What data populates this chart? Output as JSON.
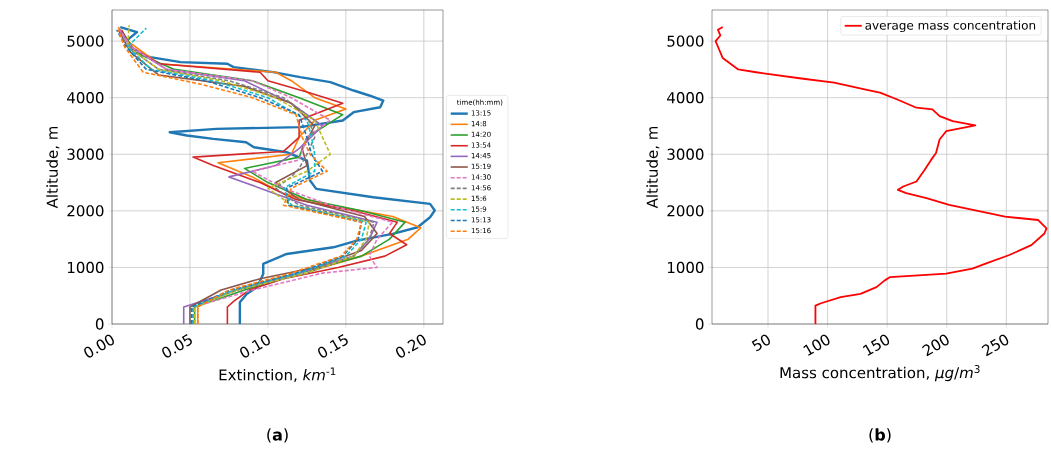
{
  "chart_data": [
    {
      "type": "line",
      "xlabel": "Extinction, *km*$^{-1}$",
      "ylabel": "Altitude, m",
      "legend_title": "time(hh:mm)",
      "legend": "right",
      "grid": true,
      "xlim": [
        0,
        0.2123
      ],
      "ylim": [
        0,
        5550
      ],
      "xticks": [
        {
          "value": 0,
          "label": "0.00"
        },
        0.05,
        {
          "value": 0.1,
          "label": "0.10"
        },
        0.15,
        {
          "value": 0.2,
          "label": "0.20"
        }
      ],
      "yticks": [
        0,
        1000,
        2000,
        3000,
        4000,
        5000
      ],
      "annotations": [
        "(**a**)"
      ],
      "series": [
        {
          "name": "13:15",
          "color": "#1f77b4",
          "line_style": "solid",
          "x": [
            0.082,
            0.082,
            0.0864,
            0.093,
            0.097,
            0.097,
            0.112,
            0.142,
            0.157,
            0.18,
            0.196,
            0.204,
            0.207,
            0.204,
            0.1676,
            0.131,
            0.127,
            0.125,
            0.112,
            0.091,
            0.086,
            0.065,
            0.048,
            0.037,
            0.067,
            0.1206,
            0.148,
            0.155,
            0.172,
            0.174,
            0.165,
            0.155,
            0.14,
            0.1206,
            0.1035,
            0.078,
            0.074,
            0.044,
            0.0245,
            0.0139,
            0.0096,
            0.016,
            0.0053
          ],
          "values": [
            0,
            383,
            531,
            649,
            884,
            1061,
            1238,
            1356,
            1474,
            1592,
            1710,
            1887,
            2005,
            2123,
            2240,
            2388,
            2535,
            2889,
            3036,
            3125,
            3213,
            3272,
            3331,
            3390,
            3449,
            3479,
            3597,
            3744,
            3832,
            3950,
            4039,
            4127,
            4275,
            4363,
            4452,
            4540,
            4599,
            4628,
            4717,
            4805,
            5012,
            5159,
            5247
          ]
        },
        {
          "name": "14:8",
          "color": "#ff7f0e",
          "line_style": "solid",
          "x": [
            0.055,
            0.055,
            0.06,
            0.08,
            0.105,
            0.135,
            0.16,
            0.19,
            0.198,
            0.18,
            0.14,
            0.11,
            0.09,
            0.068,
            0.115,
            0.12,
            0.13,
            0.15,
            0.13,
            0.115,
            0.105,
            0.03,
            0.01,
            0.004
          ],
          "values": [
            0,
            300,
            400,
            600,
            800,
            1000,
            1200,
            1500,
            1700,
            1900,
            2100,
            2300,
            2600,
            2850,
            3000,
            3300,
            3600,
            3800,
            4000,
            4300,
            4450,
            4600,
            5000,
            5250
          ]
        },
        {
          "name": "14:20",
          "color": "#2ca02c",
          "line_style": "solid",
          "x": [
            0.053,
            0.053,
            0.085,
            0.12,
            0.16,
            0.178,
            0.188,
            0.16,
            0.125,
            0.1,
            0.085,
            0.12,
            0.125,
            0.148,
            0.12,
            0.09,
            0.04,
            0.015,
            0.006
          ],
          "values": [
            0,
            300,
            600,
            900,
            1200,
            1500,
            1800,
            2000,
            2200,
            2500,
            2750,
            2950,
            3300,
            3700,
            4000,
            4300,
            4500,
            4800,
            5200
          ]
        },
        {
          "name": "13:54",
          "color": "#d62728",
          "line_style": "solid",
          "x": [
            0.074,
            0.074,
            0.078,
            0.088,
            0.11,
            0.145,
            0.175,
            0.189,
            0.178,
            0.183,
            0.155,
            0.118,
            0.095,
            0.065,
            0.052,
            0.11,
            0.12,
            0.12,
            0.148,
            0.125,
            0.1,
            0.095,
            0.03,
            0.012,
            0.006
          ],
          "values": [
            0,
            300,
            400,
            600,
            800,
            1000,
            1200,
            1400,
            1600,
            1800,
            2000,
            2200,
            2500,
            2800,
            2950,
            3050,
            3300,
            3600,
            3900,
            4100,
            4300,
            4450,
            4600,
            4900,
            5200
          ]
        },
        {
          "name": "14:45",
          "color": "#9467bd",
          "line_style": "solid",
          "x": [
            0.046,
            0.046,
            0.08,
            0.12,
            0.155,
            0.165,
            0.17,
            0.125,
            0.095,
            0.075,
            0.105,
            0.12,
            0.135,
            0.115,
            0.085,
            0.035,
            0.012,
            0.005
          ],
          "values": [
            0,
            300,
            600,
            900,
            1200,
            1500,
            1800,
            2100,
            2400,
            2600,
            2800,
            3100,
            3500,
            3900,
            4300,
            4500,
            4900,
            5200
          ]
        },
        {
          "name": "15:19",
          "color": "#8c564b",
          "line_style": "solid",
          "x": [
            0.05,
            0.05,
            0.07,
            0.095,
            0.13,
            0.16,
            0.17,
            0.162,
            0.12,
            0.105,
            0.125,
            0.122,
            0.13,
            0.115,
            0.085,
            0.03,
            0.012,
            0.004
          ],
          "values": [
            0,
            300,
            600,
            800,
            1000,
            1300,
            1600,
            1900,
            2200,
            2500,
            2800,
            3100,
            3500,
            3900,
            4200,
            4400,
            4800,
            5200
          ]
        },
        {
          "name": "14:30",
          "color": "#e377c2",
          "line_style": "dashed",
          "x": [
            0.052,
            0.052,
            0.09,
            0.135,
            0.17,
            0.165,
            0.17,
            0.18,
            0.14,
            0.11,
            0.09,
            0.12,
            0.125,
            0.14,
            0.115,
            0.09,
            0.035,
            0.012,
            0.005
          ],
          "values": [
            0,
            300,
            600,
            900,
            1000,
            1200,
            1500,
            1800,
            2100,
            2400,
            2700,
            2900,
            3300,
            3600,
            4000,
            4300,
            4500,
            4900,
            5200
          ]
        },
        {
          "name": "14:56",
          "color": "#7f7f7f",
          "line_style": "dashed",
          "x": [
            0.051,
            0.051,
            0.08,
            0.125,
            0.155,
            0.165,
            0.168,
            0.12,
            0.105,
            0.115,
            0.12,
            0.125,
            0.13,
            0.125,
            0.11,
            0.075,
            0.03,
            0.01,
            0.004
          ],
          "values": [
            0,
            300,
            600,
            900,
            1200,
            1500,
            1800,
            2100,
            2400,
            2600,
            2750,
            3000,
            3300,
            3700,
            4000,
            4300,
            4500,
            4900,
            5200
          ]
        },
        {
          "name": "15:6",
          "color": "#bcbd22",
          "line_style": "dashed",
          "x": [
            0.053,
            0.053,
            0.08,
            0.125,
            0.155,
            0.163,
            0.165,
            0.115,
            0.1,
            0.125,
            0.14,
            0.135,
            0.13,
            0.105,
            0.07,
            0.03,
            0.01,
            0.011
          ],
          "values": [
            0,
            300,
            600,
            900,
            1200,
            1500,
            1800,
            2100,
            2400,
            2700,
            3000,
            3300,
            3600,
            4000,
            4300,
            4500,
            4900,
            5280
          ]
        },
        {
          "name": "15:9",
          "color": "#17becf",
          "line_style": "dashed",
          "x": [
            0.052,
            0.052,
            0.078,
            0.12,
            0.15,
            0.16,
            0.163,
            0.115,
            0.11,
            0.13,
            0.13,
            0.128,
            0.125,
            0.1,
            0.065,
            0.025,
            0.01,
            0.022
          ],
          "values": [
            0,
            300,
            600,
            900,
            1200,
            1500,
            1800,
            2100,
            2400,
            2700,
            3000,
            3300,
            3600,
            4000,
            4300,
            4500,
            4900,
            5230
          ]
        },
        {
          "name": "15:13",
          "color": "#1f77b4",
          "line_style": "dashed",
          "x": [
            0.051,
            0.051,
            0.076,
            0.118,
            0.148,
            0.158,
            0.16,
            0.113,
            0.112,
            0.135,
            0.128,
            0.125,
            0.12,
            0.095,
            0.06,
            0.022,
            0.009,
            0.003
          ],
          "values": [
            0,
            300,
            600,
            900,
            1200,
            1500,
            1800,
            2100,
            2400,
            2700,
            3000,
            3300,
            3700,
            4000,
            4300,
            4500,
            4900,
            5200
          ]
        },
        {
          "name": "15:16",
          "color": "#ff7f0e",
          "line_style": "dashed",
          "x": [
            0.055,
            0.055,
            0.075,
            0.115,
            0.147,
            0.157,
            0.16,
            0.11,
            0.115,
            0.138,
            0.127,
            0.122,
            0.118,
            0.09,
            0.055,
            0.02,
            0.008,
            0.004
          ],
          "values": [
            0,
            300,
            600,
            900,
            1200,
            1500,
            1800,
            2100,
            2400,
            2700,
            3000,
            3300,
            3700,
            4000,
            4250,
            4450,
            4900,
            5200
          ]
        }
      ]
    },
    {
      "type": "line",
      "xlabel": "Mass concentration, *μg*/*m*$^{3}$",
      "ylabel": "Altitude, m",
      "legend": "top right",
      "grid": true,
      "xlim": [
        3,
        285
      ],
      "ylim": [
        0,
        5550
      ],
      "xticks": [
        50,
        100,
        150,
        200,
        250
      ],
      "yticks": [
        0,
        1000,
        2000,
        3000,
        4000,
        5000
      ],
      "annotations": [
        "(**b**)"
      ],
      "series": [
        {
          "name": "average mass concentration",
          "color": "#ff0000",
          "line_style": "solid",
          "x": [
            89.8,
            89.8,
            94.5,
            111,
            127.6,
            141,
            148,
            152.5,
            199.5,
            221.5,
            232.6,
            252,
            271,
            282,
            283.7,
            276.8,
            249,
            202,
            183,
            166,
            159,
            163.5,
            174.6,
            181.5,
            187,
            191,
            194,
            199.5,
            224,
            205,
            194,
            188,
            174.6,
            158,
            144,
            133,
            105.5,
            78,
            40,
            25,
            12,
            8,
            6,
            10,
            8,
            12
          ],
          "values": [
            0,
            326,
            367,
            474,
            533,
            652,
            771,
            830,
            889,
            978,
            1067,
            1215,
            1393,
            1600,
            1689,
            1838,
            1897,
            2104,
            2223,
            2312,
            2371,
            2430,
            2519,
            2727,
            2905,
            3023,
            3260,
            3408,
            3509,
            3586,
            3675,
            3794,
            3823,
            3972,
            4090,
            4138,
            4268,
            4339,
            4450,
            4500,
            4700,
            4900,
            5000,
            5100,
            5200,
            5250
          ]
        }
      ]
    }
  ]
}
